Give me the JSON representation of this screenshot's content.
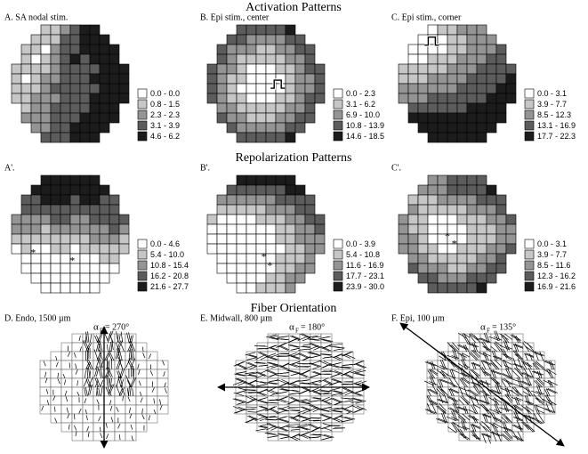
{
  "headings": [
    "Activation Patterns",
    "Repolarization Patterns",
    "Fiber Orientation"
  ],
  "level_colors": [
    "#ffffff",
    "#c6c6c6",
    "#949494",
    "#5c5c5c",
    "#1c1c1c"
  ],
  "panels": [
    {
      "label": "A. SA nodal stim.",
      "legend": [
        "0.0 - 0.0",
        "0.8 - 1.5",
        "2.3 - 2.3",
        "3.1 - 3.9",
        "4.6 - 6.2"
      ],
      "markers": [],
      "cells": [
        [
          null,
          null,
          null,
          1,
          1,
          2,
          3,
          4,
          4,
          null,
          null,
          null
        ],
        [
          null,
          null,
          1,
          1,
          1,
          3,
          3,
          4,
          4,
          4,
          null,
          null
        ],
        [
          null,
          1,
          1,
          0,
          2,
          3,
          3,
          4,
          4,
          4,
          4,
          null
        ],
        [
          null,
          1,
          0,
          1,
          2,
          3,
          4,
          3,
          4,
          4,
          4,
          null
        ],
        [
          1,
          1,
          1,
          1,
          2,
          3,
          3,
          3,
          3,
          4,
          4,
          4
        ],
        [
          1,
          0,
          1,
          2,
          2,
          3,
          3,
          3,
          4,
          4,
          4,
          4
        ],
        [
          1,
          1,
          1,
          2,
          3,
          3,
          3,
          3,
          3,
          4,
          4,
          4
        ],
        [
          1,
          1,
          2,
          2,
          2,
          3,
          3,
          3,
          4,
          4,
          4,
          4
        ],
        [
          null,
          1,
          2,
          2,
          3,
          3,
          3,
          3,
          4,
          4,
          4,
          null
        ],
        [
          null,
          2,
          2,
          2,
          3,
          3,
          3,
          4,
          4,
          4,
          4,
          null
        ],
        [
          null,
          null,
          2,
          2,
          3,
          3,
          4,
          4,
          4,
          4,
          null,
          null
        ],
        [
          null,
          null,
          null,
          3,
          3,
          3,
          4,
          4,
          4,
          null,
          null,
          null
        ]
      ]
    },
    {
      "label": "B. Epi stim., center",
      "legend": [
        "0.0 - 2.3",
        "3.1 - 6.2",
        "6.9 - 10.0",
        "10.8 - 13.9",
        "14.6 - 18.5"
      ],
      "markers": [],
      "cells": [
        [
          null,
          null,
          null,
          3,
          3,
          3,
          3,
          3,
          4,
          null,
          null,
          null
        ],
        [
          null,
          null,
          3,
          3,
          2,
          2,
          2,
          2,
          3,
          3,
          null,
          null
        ],
        [
          null,
          3,
          2,
          2,
          2,
          1,
          1,
          2,
          2,
          3,
          3,
          null
        ],
        [
          null,
          3,
          2,
          1,
          1,
          1,
          1,
          1,
          2,
          2,
          3,
          null
        ],
        [
          3,
          2,
          2,
          1,
          0,
          0,
          0,
          1,
          1,
          2,
          3,
          3
        ],
        [
          3,
          2,
          1,
          1,
          0,
          0,
          0,
          0,
          1,
          2,
          2,
          3
        ],
        [
          3,
          2,
          1,
          0,
          0,
          0,
          0,
          0,
          1,
          2,
          2,
          3
        ],
        [
          3,
          2,
          1,
          1,
          0,
          0,
          0,
          1,
          1,
          2,
          3,
          3
        ],
        [
          null,
          2,
          2,
          1,
          1,
          1,
          1,
          1,
          2,
          2,
          3,
          null
        ],
        [
          null,
          3,
          2,
          2,
          1,
          1,
          1,
          2,
          2,
          3,
          3,
          null
        ],
        [
          null,
          null,
          3,
          2,
          2,
          2,
          2,
          2,
          3,
          3,
          null,
          null
        ],
        [
          null,
          null,
          null,
          3,
          3,
          3,
          3,
          3,
          4,
          null,
          null,
          null
        ]
      ]
    },
    {
      "label": "C. Epi stim., corner",
      "legend": [
        "0.0 - 3.1",
        "3.9 - 7.7",
        "8.5 - 12.3",
        "13.1 - 16.9",
        "17.7 - 22.3"
      ],
      "markers": [],
      "cells": [
        [
          null,
          null,
          null,
          0,
          1,
          1,
          2,
          2,
          2,
          null,
          null,
          null
        ],
        [
          null,
          null,
          0,
          0,
          0,
          1,
          1,
          2,
          2,
          2,
          null,
          null
        ],
        [
          null,
          0,
          0,
          0,
          0,
          1,
          1,
          2,
          2,
          2,
          3,
          null
        ],
        [
          null,
          0,
          0,
          1,
          1,
          1,
          2,
          2,
          2,
          3,
          3,
          null
        ],
        [
          1,
          1,
          1,
          1,
          1,
          2,
          2,
          2,
          3,
          3,
          3,
          3
        ],
        [
          1,
          1,
          1,
          2,
          2,
          2,
          2,
          3,
          3,
          3,
          3,
          4
        ],
        [
          2,
          2,
          2,
          2,
          2,
          2,
          3,
          3,
          3,
          3,
          4,
          4
        ],
        [
          2,
          2,
          2,
          3,
          3,
          3,
          3,
          3,
          3,
          4,
          4,
          4
        ],
        [
          null,
          3,
          3,
          3,
          3,
          3,
          3,
          4,
          4,
          4,
          4,
          null
        ],
        [
          null,
          4,
          4,
          4,
          4,
          4,
          4,
          4,
          4,
          4,
          4,
          null
        ],
        [
          null,
          null,
          4,
          4,
          4,
          4,
          4,
          4,
          4,
          4,
          null,
          null
        ],
        [
          null,
          null,
          null,
          4,
          4,
          4,
          4,
          4,
          4,
          null,
          null,
          null
        ]
      ]
    },
    {
      "label": "A'.",
      "legend": [
        "0.0 - 4.6",
        "5.4 - 10.0",
        "10.8 - 15.4",
        "16.2 - 20.8",
        "21.6 - 27.7"
      ],
      "markers": [
        "*",
        "*"
      ],
      "cells": [
        [
          null,
          null,
          null,
          4,
          4,
          4,
          4,
          4,
          4,
          null,
          null,
          null
        ],
        [
          null,
          null,
          4,
          4,
          4,
          4,
          4,
          4,
          4,
          4,
          null,
          null
        ],
        [
          null,
          3,
          3,
          4,
          4,
          4,
          3,
          4,
          4,
          3,
          3,
          null
        ],
        [
          null,
          3,
          3,
          3,
          3,
          3,
          3,
          3,
          3,
          3,
          3,
          null
        ],
        [
          2,
          2,
          2,
          2,
          3,
          3,
          2,
          2,
          3,
          3,
          3,
          3
        ],
        [
          2,
          2,
          2,
          1,
          2,
          2,
          2,
          2,
          2,
          2,
          3,
          2
        ],
        [
          1,
          1,
          1,
          1,
          1,
          1,
          1,
          1,
          2,
          2,
          2,
          1
        ],
        [
          0,
          1,
          0,
          0,
          1,
          1,
          0,
          1,
          1,
          1,
          1,
          1
        ],
        [
          null,
          0,
          0,
          0,
          0,
          0,
          0,
          0,
          0,
          1,
          1,
          null
        ],
        [
          null,
          0,
          0,
          0,
          0,
          0,
          0,
          0,
          0,
          0,
          0,
          null
        ],
        [
          null,
          null,
          0,
          0,
          0,
          0,
          0,
          0,
          0,
          0,
          null,
          null
        ],
        [
          null,
          null,
          null,
          0,
          0,
          0,
          0,
          0,
          0,
          null,
          null,
          null
        ]
      ]
    },
    {
      "label": "B'.",
      "legend": [
        "0.0 - 3.9",
        "5.4 - 10.8",
        "11.6 - 16.9",
        "17.7 - 23.1",
        "23.9 - 30.0"
      ],
      "markers": [
        "*",
        "*"
      ],
      "cells": [
        [
          null,
          null,
          null,
          4,
          4,
          4,
          4,
          4,
          4,
          null,
          null,
          null
        ],
        [
          null,
          null,
          3,
          3,
          3,
          3,
          3,
          3,
          4,
          4,
          null,
          null
        ],
        [
          null,
          2,
          2,
          2,
          2,
          2,
          2,
          3,
          3,
          3,
          3,
          null
        ],
        [
          null,
          1,
          1,
          1,
          1,
          1,
          2,
          2,
          2,
          3,
          3,
          null
        ],
        [
          1,
          0,
          0,
          0,
          0,
          1,
          1,
          1,
          2,
          2,
          3,
          3
        ],
        [
          0,
          0,
          0,
          0,
          0,
          0,
          0,
          1,
          1,
          2,
          2,
          3
        ],
        [
          0,
          0,
          0,
          0,
          0,
          0,
          0,
          1,
          1,
          2,
          2,
          2
        ],
        [
          0,
          0,
          0,
          0,
          0,
          0,
          0,
          0,
          1,
          1,
          2,
          2
        ],
        [
          null,
          0,
          0,
          0,
          0,
          0,
          0,
          1,
          1,
          1,
          2,
          null
        ],
        [
          null,
          0,
          0,
          0,
          0,
          0,
          0,
          1,
          1,
          2,
          2,
          null
        ],
        [
          null,
          null,
          0,
          0,
          0,
          0,
          1,
          1,
          2,
          2,
          null,
          null
        ],
        [
          null,
          null,
          null,
          0,
          0,
          1,
          1,
          1,
          2,
          null,
          null,
          null
        ]
      ]
    },
    {
      "label": "C'.",
      "legend": [
        "0.0 - 3.1",
        "3.9 - 7.7",
        "8.5 - 11.6",
        "12.3 - 16.2",
        "16.9 - 21.6"
      ],
      "markers": [
        "*",
        "*"
      ],
      "cells": [
        [
          null,
          null,
          null,
          2,
          2,
          3,
          3,
          3,
          3,
          null,
          null,
          null
        ],
        [
          null,
          null,
          2,
          2,
          2,
          3,
          3,
          3,
          3,
          4,
          null,
          null
        ],
        [
          null,
          1,
          1,
          1,
          2,
          2,
          2,
          2,
          3,
          3,
          3,
          null
        ],
        [
          null,
          2,
          1,
          1,
          1,
          1,
          1,
          2,
          2,
          2,
          3,
          null
        ],
        [
          2,
          1,
          1,
          0,
          0,
          0,
          1,
          1,
          1,
          2,
          2,
          3
        ],
        [
          2,
          1,
          1,
          0,
          0,
          0,
          0,
          1,
          1,
          1,
          2,
          2
        ],
        [
          2,
          2,
          1,
          0,
          0,
          0,
          0,
          1,
          1,
          1,
          2,
          2
        ],
        [
          2,
          2,
          1,
          1,
          0,
          0,
          1,
          1,
          1,
          2,
          2,
          3
        ],
        [
          null,
          2,
          2,
          1,
          1,
          1,
          1,
          1,
          2,
          2,
          3,
          null
        ],
        [
          null,
          3,
          2,
          2,
          2,
          1,
          1,
          2,
          2,
          3,
          3,
          null
        ],
        [
          null,
          null,
          3,
          3,
          2,
          2,
          2,
          3,
          3,
          3,
          null,
          null
        ],
        [
          null,
          null,
          null,
          3,
          3,
          3,
          3,
          3,
          4,
          null,
          null,
          null
        ]
      ]
    }
  ],
  "fiber_panels": [
    {
      "label": "D. Endo, 1500 µm",
      "alpha": "α",
      "sub": "F",
      "angle": "= 270°"
    },
    {
      "label": "E. Midwall, 800 µm",
      "alpha": "α",
      "sub": "F",
      "angle": "= 180°"
    },
    {
      "label": "F. Epi, 100 µm",
      "alpha": "α",
      "sub": "F",
      "angle": "= 135°"
    }
  ]
}
